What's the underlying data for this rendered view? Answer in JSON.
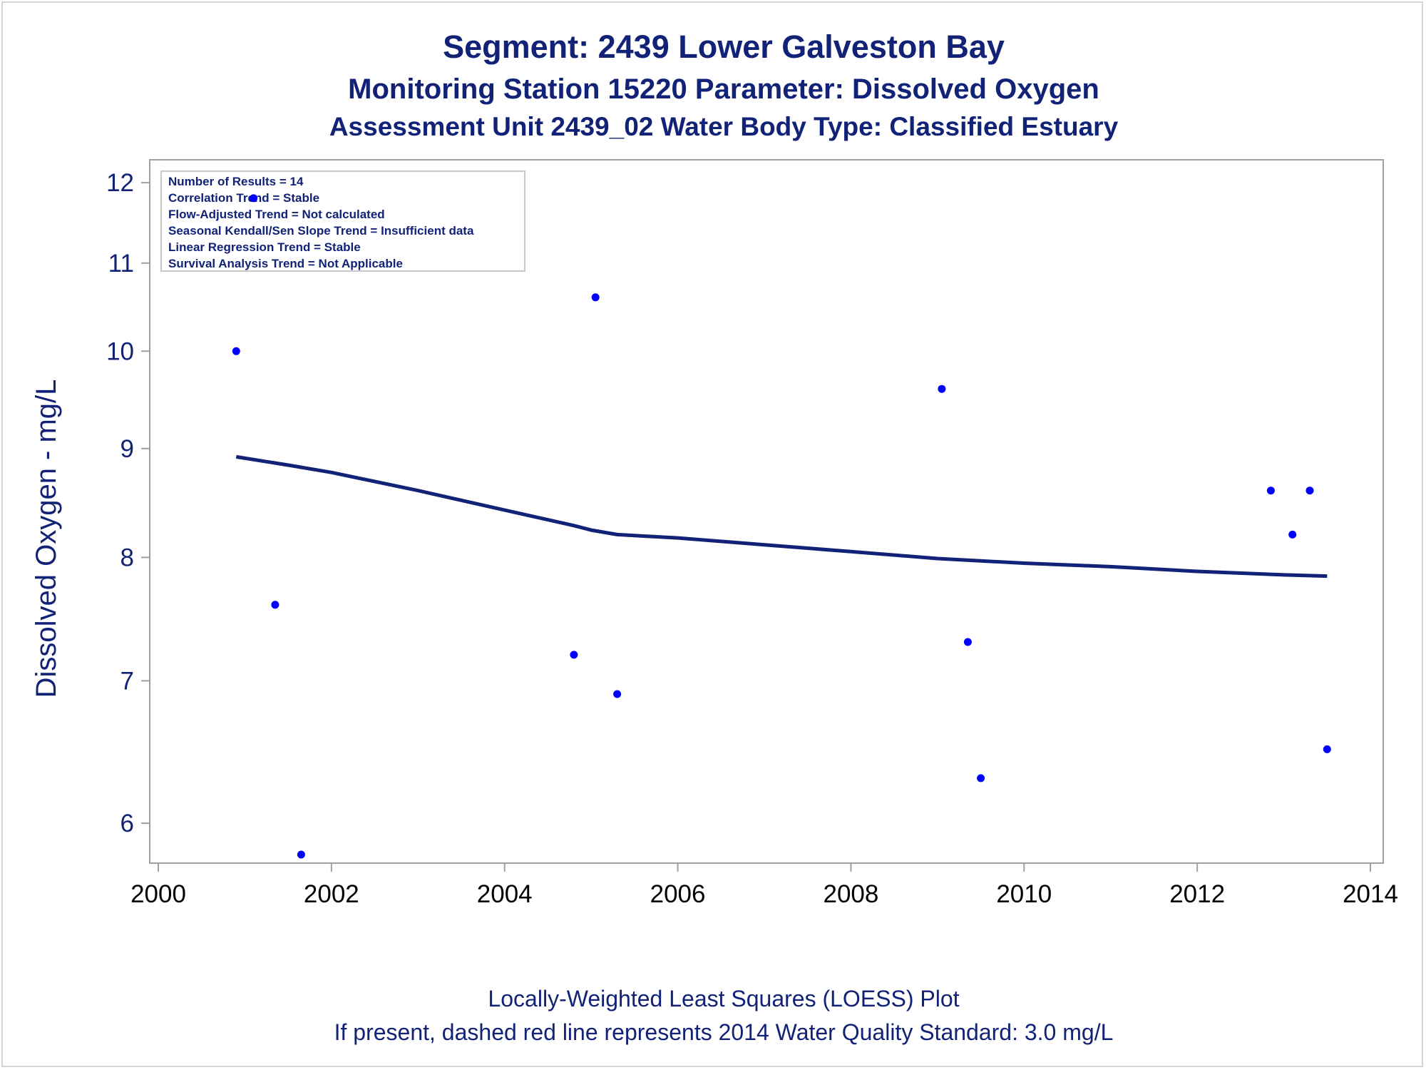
{
  "chart_data": {
    "type": "scatter",
    "title": "Segment: 2439  Lower Galveston Bay",
    "subtitle": "Monitoring Station 15220 Parameter: Dissolved Oxygen",
    "subtitle2": "Assessment Unit 2439_02   Water Body Type: Classified Estuary",
    "xlabel": "",
    "ylabel": "Dissolved Oxygen - mg/L",
    "y_scale": "log",
    "xlim": [
      2000,
      2014
    ],
    "ylim": [
      5.8,
      12.15
    ],
    "x_ticks": [
      "2000",
      "2002",
      "2004",
      "2006",
      "2008",
      "2010",
      "2012",
      "2014"
    ],
    "y_ticks": [
      "6",
      "7",
      "8",
      "9",
      "10",
      "11",
      "12"
    ],
    "grid": false,
    "inset_lines": [
      "Number of Results = 14",
      "Correlation Trend = Stable",
      "Flow-Adjusted Trend = Not calculated",
      "Seasonal Kendall/Sen Slope Trend = Insufficient data",
      "Linear Regression Trend = Stable",
      "Survival Analysis Trend = Not Applicable"
    ],
    "inset_position": "top-left",
    "points": [
      {
        "x": 2000.9,
        "y": 10.0
      },
      {
        "x": 2001.1,
        "y": 11.8
      },
      {
        "x": 2001.35,
        "y": 7.6
      },
      {
        "x": 2001.65,
        "y": 5.8
      },
      {
        "x": 2004.8,
        "y": 7.2
      },
      {
        "x": 2005.05,
        "y": 10.6
      },
      {
        "x": 2005.3,
        "y": 6.9
      },
      {
        "x": 2009.05,
        "y": 9.6
      },
      {
        "x": 2009.35,
        "y": 7.3
      },
      {
        "x": 2009.5,
        "y": 6.3
      },
      {
        "x": 2012.85,
        "y": 8.6
      },
      {
        "x": 2013.1,
        "y": 8.2
      },
      {
        "x": 2013.3,
        "y": 8.6
      },
      {
        "x": 2013.5,
        "y": 6.5
      }
    ],
    "loess": {
      "x": [
        2000.9,
        2001.5,
        2002.0,
        2003.0,
        2004.0,
        2004.8,
        2005.0,
        2005.3,
        2006.0,
        2007.0,
        2008.0,
        2009.0,
        2010.0,
        2011.0,
        2012.0,
        2013.0,
        2013.5
      ],
      "y": [
        8.92,
        8.84,
        8.77,
        8.6,
        8.42,
        8.28,
        8.24,
        8.2,
        8.17,
        8.11,
        8.05,
        7.99,
        7.95,
        7.92,
        7.88,
        7.85,
        7.84
      ]
    },
    "colors": {
      "points": "#0000ff",
      "loess": "#112277",
      "text": "#112277",
      "axis": "#a0a0a0"
    }
  },
  "footnote": {
    "line1": "Locally-Weighted Least Squares (LOESS) Plot",
    "line2": "If present, dashed red line represents 2014 Water Quality Standard: 3.0 mg/L"
  }
}
